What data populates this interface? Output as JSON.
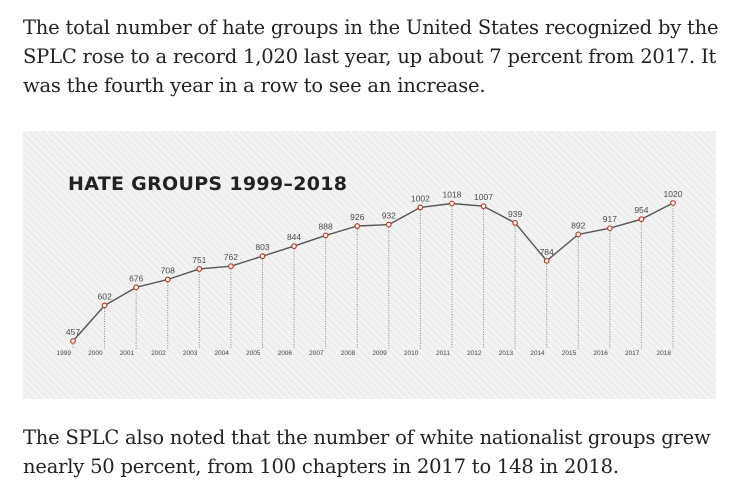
{
  "article": {
    "paragraph_top": "The total number of hate groups in the United States recognized by the SPLC rose to a record 1,020 last year, up about 7 percent from 2017. It was the fourth year in a row to see an increase.",
    "paragraph_bottom": "The SPLC also noted that the number of white nationalist groups grew nearly 50 percent, from 100 chapters in 2017 to 148 in 2018."
  },
  "colors": {
    "line": "#555555",
    "marker_stroke": "#c0392b",
    "marker_fill": "#ffffff",
    "drop_lines": "#888888",
    "background": "#eeeeee"
  },
  "chart_data": {
    "type": "line",
    "title": "HATE GROUPS 1999–2018",
    "xlabel": "",
    "ylabel": "",
    "grid": false,
    "legend": "none",
    "categories": [
      "1999",
      "2000",
      "2001",
      "2002",
      "2003",
      "2004",
      "2005",
      "2006",
      "2007",
      "2008",
      "2009",
      "2010",
      "2011",
      "2012",
      "2013",
      "2014",
      "2015",
      "2016",
      "2017",
      "2018"
    ],
    "values": [
      457,
      602,
      676,
      708,
      751,
      762,
      803,
      844,
      888,
      926,
      932,
      1002,
      1018,
      1007,
      939,
      784,
      892,
      917,
      954,
      1020
    ],
    "ylim": [
      420,
      1060
    ]
  }
}
